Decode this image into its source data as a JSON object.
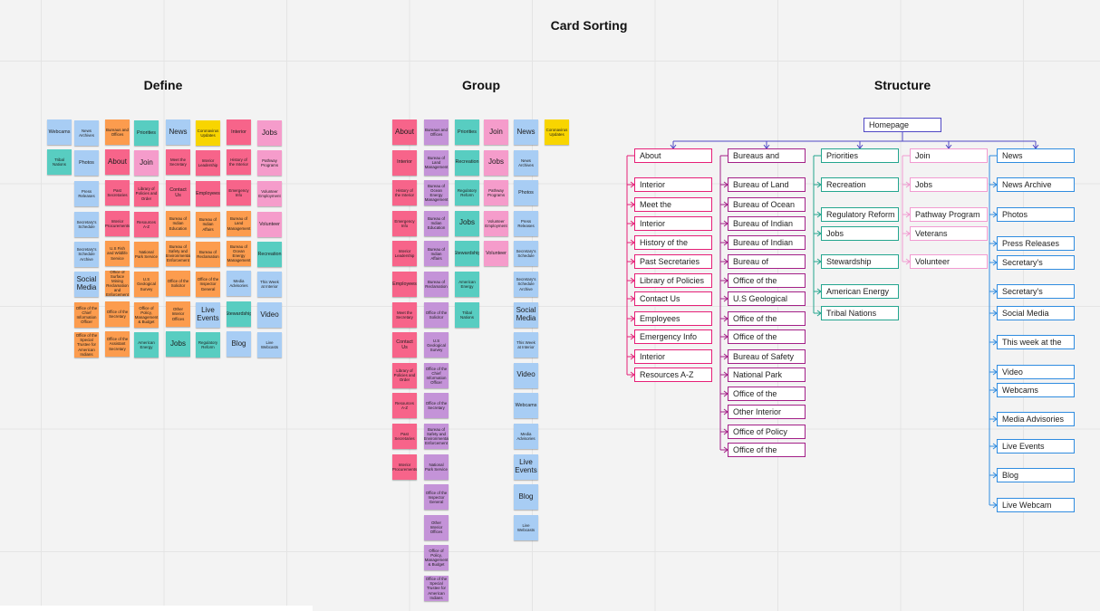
{
  "board": {
    "title": "Card Sorting"
  },
  "colors": {
    "blue": "#a8cdf4",
    "orange": "#fc9c4e",
    "pink": "#f7648a",
    "teal": "#58cdc1",
    "yellow": "#f8d500",
    "violet": "#c493d8",
    "rose": "#f59ccb",
    "about": "#e61f77",
    "bureaus": "#a31f87",
    "priorities": "#23a58e",
    "join": "#f19bd1",
    "news": "#2f8ce0",
    "root": "#4f47c4"
  },
  "sections": {
    "define": "Define",
    "group": "Group",
    "structure": "Structure"
  },
  "define_notes": [
    {
      "text": "Webcams",
      "color": "blue"
    },
    {
      "text": "News Archives",
      "color": "blue"
    },
    {
      "text": "Bureaus and Offices",
      "color": "orange"
    },
    {
      "text": "Priorities",
      "color": "teal"
    },
    {
      "text": "News",
      "color": "blue",
      "size": "big"
    },
    {
      "text": "Coronavirus Updates",
      "color": "yellow"
    },
    {
      "text": "Interior",
      "color": "pink"
    },
    {
      "text": "Jobs",
      "color": "rose",
      "size": "big"
    },
    {
      "text": "Tribal Nations",
      "color": "teal"
    },
    {
      "text": "Photos",
      "color": "blue"
    },
    {
      "text": "About",
      "color": "pink",
      "size": "big"
    },
    {
      "text": "Join",
      "color": "rose",
      "size": "big"
    },
    {
      "text": "Meet the Secretary",
      "color": "pink"
    },
    {
      "text": "Interior Leadership",
      "color": "pink"
    },
    {
      "text": "History of the Interior",
      "color": "pink"
    },
    {
      "text": "Pathway Programs",
      "color": "rose"
    },
    {
      "text": "Press Releases",
      "color": "blue"
    },
    {
      "text": "Past Secretaries",
      "color": "pink"
    },
    {
      "text": "Library of Policies and Order",
      "color": "pink"
    },
    {
      "text": "Contact Us",
      "color": "pink"
    },
    {
      "text": "Employees",
      "color": "pink"
    },
    {
      "text": "Emergency Info",
      "color": "pink"
    },
    {
      "text": "Volunteer Employment",
      "color": "rose"
    },
    {
      "text": "Secretary's Schedule",
      "color": "blue"
    },
    {
      "text": "Interior Procurements",
      "color": "pink"
    },
    {
      "text": "Resources A-Z",
      "color": "pink"
    },
    {
      "text": "Bureau of Indian Education",
      "color": "orange"
    },
    {
      "text": "Bureau of Indian Affairs",
      "color": "orange"
    },
    {
      "text": "Bureau of Land Management",
      "color": "orange"
    },
    {
      "text": "Volunteer",
      "color": "rose"
    },
    {
      "text": "Secretary's Schedule Archive",
      "color": "blue"
    },
    {
      "text": "U.S Fish and Wildlife Service",
      "color": "orange"
    },
    {
      "text": "National Park Service",
      "color": "orange"
    },
    {
      "text": "Bureau of Safety and Environmental Enforcement",
      "color": "orange"
    },
    {
      "text": "Bureau of Reclamation",
      "color": "orange"
    },
    {
      "text": "Bureau of Ocean Energy Management",
      "color": "orange"
    },
    {
      "text": "Recreation",
      "color": "teal"
    },
    {
      "text": "Social Media",
      "color": "blue",
      "size": "big"
    },
    {
      "text": "Office of Surface Mining Reclamation and Enforcement",
      "color": "orange"
    },
    {
      "text": "U.S Geological Survey",
      "color": "orange"
    },
    {
      "text": "Office of the Solicitor",
      "color": "orange"
    },
    {
      "text": "Office of the Inspector General",
      "color": "orange"
    },
    {
      "text": "Media Advisories",
      "color": "blue"
    },
    {
      "text": "This Week at Interior",
      "color": "blue"
    },
    {
      "text": "Office of the Chief Information Officer",
      "color": "orange"
    },
    {
      "text": "Office of the Secretary",
      "color": "orange"
    },
    {
      "text": "Office of Policy, Management & Budget",
      "color": "orange"
    },
    {
      "text": "Other Interior Offices",
      "color": "orange"
    },
    {
      "text": "Live Events",
      "color": "blue",
      "size": "big"
    },
    {
      "text": "Stewardship",
      "color": "teal"
    },
    {
      "text": "Video",
      "color": "blue",
      "size": "big"
    },
    {
      "text": "Office of the Special Trustee for American Indians",
      "color": "orange"
    },
    {
      "text": "Office of the Assistant Secretary",
      "color": "orange"
    },
    {
      "text": "American Energy",
      "color": "teal"
    },
    {
      "text": "Jobs",
      "color": "teal",
      "size": "big"
    },
    {
      "text": "Regulatory Reform",
      "color": "teal"
    },
    {
      "text": "Blog",
      "color": "blue",
      "size": "big"
    },
    {
      "text": "Live Webcasts",
      "color": "blue"
    }
  ],
  "group_columns": [
    [
      {
        "text": "About",
        "color": "pink",
        "size": "big"
      },
      {
        "text": "Interior",
        "color": "pink"
      },
      {
        "text": "History of the Interior",
        "color": "pink"
      },
      {
        "text": "Emergency Info",
        "color": "pink"
      },
      {
        "text": "Interior Leadership",
        "color": "pink"
      },
      {
        "text": "Employees",
        "color": "pink"
      },
      {
        "text": "Meet the Secretary",
        "color": "pink"
      },
      {
        "text": "Contact Us",
        "color": "pink"
      },
      {
        "text": "Library of Policies and Order",
        "color": "pink"
      },
      {
        "text": "Resources A-Z",
        "color": "pink"
      },
      {
        "text": "Past Secretaries",
        "color": "pink"
      },
      {
        "text": "Interior Procurements",
        "color": "pink"
      }
    ],
    [
      {
        "text": "Bureaus and Offices",
        "color": "violet"
      },
      {
        "text": "Bureau of Land Management",
        "color": "violet"
      },
      {
        "text": "Bureau of Ocean Energy Management",
        "color": "violet"
      },
      {
        "text": "Bureau of Indian Education",
        "color": "violet"
      },
      {
        "text": "Bureau of Indian Affairs",
        "color": "violet"
      },
      {
        "text": "Bureau of Reclamation",
        "color": "violet"
      },
      {
        "text": "Office of the Solicitor",
        "color": "violet"
      },
      {
        "text": "U.S Geological Survey",
        "color": "violet"
      },
      {
        "text": "Office of the Chief Information Officer",
        "color": "violet"
      },
      {
        "text": "Office of the Secretary",
        "color": "violet"
      },
      {
        "text": "Bureau of Safety and Environmental Enforcement",
        "color": "violet"
      },
      {
        "text": "National Park Service",
        "color": "violet"
      },
      {
        "text": "Office of the Inspector General",
        "color": "violet"
      },
      {
        "text": "Other Interior Offices",
        "color": "violet"
      },
      {
        "text": "Office of Policy, Management & Budget",
        "color": "violet"
      },
      {
        "text": "Office of the Special Trustee for American Indians",
        "color": "violet"
      }
    ],
    [
      {
        "text": "Priorities",
        "color": "teal"
      },
      {
        "text": "Recreation",
        "color": "teal"
      },
      {
        "text": "Regulatory Reform",
        "color": "teal"
      },
      {
        "text": "Jobs",
        "color": "teal",
        "size": "big"
      },
      {
        "text": "Stewardship",
        "color": "teal"
      },
      {
        "text": "American Energy",
        "color": "teal"
      },
      {
        "text": "Tribal Nations",
        "color": "teal"
      }
    ],
    [
      {
        "text": "Join",
        "color": "rose",
        "size": "big"
      },
      {
        "text": "Jobs",
        "color": "rose",
        "size": "big"
      },
      {
        "text": "Pathway Programs",
        "color": "rose"
      },
      {
        "text": "Volunteer Employment",
        "color": "rose"
      },
      {
        "text": "Volunteer",
        "color": "rose"
      }
    ],
    [
      {
        "text": "News",
        "color": "blue",
        "size": "big"
      },
      {
        "text": "News Archives",
        "color": "blue"
      },
      {
        "text": "Photos",
        "color": "blue"
      },
      {
        "text": "Press Releases",
        "color": "blue"
      },
      {
        "text": "Secretary's Schedule",
        "color": "blue"
      },
      {
        "text": "Secretary's Schedule Archive",
        "color": "blue"
      },
      {
        "text": "Social Media",
        "color": "blue",
        "size": "big"
      },
      {
        "text": "This Week at Interior",
        "color": "blue"
      },
      {
        "text": "Video",
        "color": "blue",
        "size": "big"
      },
      {
        "text": "Webcams",
        "color": "blue"
      },
      {
        "text": "Media Advisories",
        "color": "blue"
      },
      {
        "text": "Live Events",
        "color": "blue",
        "size": "big"
      },
      {
        "text": "Blog",
        "color": "blue",
        "size": "big"
      },
      {
        "text": "Live Webcasts",
        "color": "blue"
      }
    ],
    [
      {
        "text": "Coronavirus Updates",
        "color": "yellow"
      }
    ]
  ],
  "structure": {
    "root": "Homepage",
    "branches": [
      {
        "label": "About",
        "color": "about",
        "children": [
          "Interior",
          "Meet the",
          "Interior",
          "History of the",
          "Past Secretaries",
          "Library of Policies",
          "Contact Us",
          "Employees",
          "Emergency Info",
          "Interior",
          "Resources A-Z"
        ]
      },
      {
        "label": "Bureaus and",
        "color": "bureaus",
        "children": [
          "Bureau of Land",
          "Bureau of Ocean",
          "Bureau of Indian",
          "Bureau of Indian",
          "Bureau of",
          "Office of the",
          "U.S Geological",
          "Office of the",
          "Office of the",
          "Bureau of Safety",
          "National Park",
          "Office of the",
          "Other Interior",
          "Office of Policy",
          "Office of the"
        ]
      },
      {
        "label": "Priorities",
        "color": "priorities",
        "children": [
          "Recreation",
          "Regulatory Reform",
          "Jobs",
          "Stewardship",
          "American Energy",
          "Tribal Nations"
        ]
      },
      {
        "label": "Join",
        "color": "join",
        "children": [
          "Jobs",
          "Pathway Program",
          "Veterans",
          "Volunteer"
        ]
      },
      {
        "label": "News",
        "color": "news",
        "children": [
          "News Archive",
          "Photos",
          "Press Releases",
          "Secretary's",
          "Secretary's",
          "Social Media",
          "This week at the",
          "Video",
          "Webcams",
          "Media Advisories",
          "Live Events",
          "Blog",
          "Live Webcam"
        ]
      }
    ]
  }
}
